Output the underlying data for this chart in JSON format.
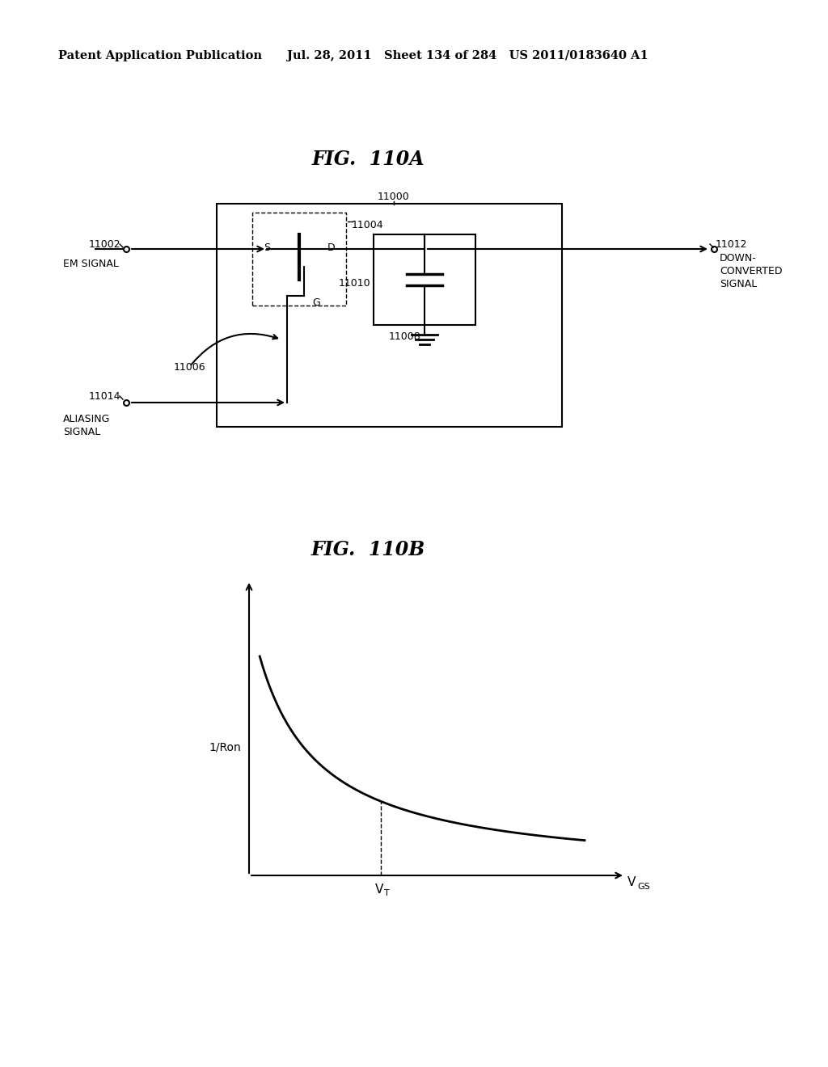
{
  "header_left": "Patent Application Publication",
  "header_mid": "Jul. 28, 2011   Sheet 134 of 284   US 2011/0183640 A1",
  "fig_title_A": "FIG.  110A",
  "fig_title_B": "FIG.  110B",
  "label_11000": "11000",
  "label_11002": "11002",
  "label_11004": "11004",
  "label_11006": "11006",
  "label_11008": "11008",
  "label_11010": "11010",
  "label_11012": "11012",
  "label_11014": "11014",
  "text_em_signal": "EM SIGNAL",
  "text_down_converted": "DOWN-\nCONVERTED\nSIGNAL",
  "text_aliasing_signal": "ALIASING\nSIGNAL",
  "text_S": "S",
  "text_D": "D",
  "text_G": "G",
  "ylabel_B": "1/Ron",
  "xlabel_B_main": "V",
  "xlabel_B_sub": "GS",
  "vt_main": "V",
  "vt_sub": "T",
  "bg_color": "#ffffff",
  "line_color": "#000000"
}
